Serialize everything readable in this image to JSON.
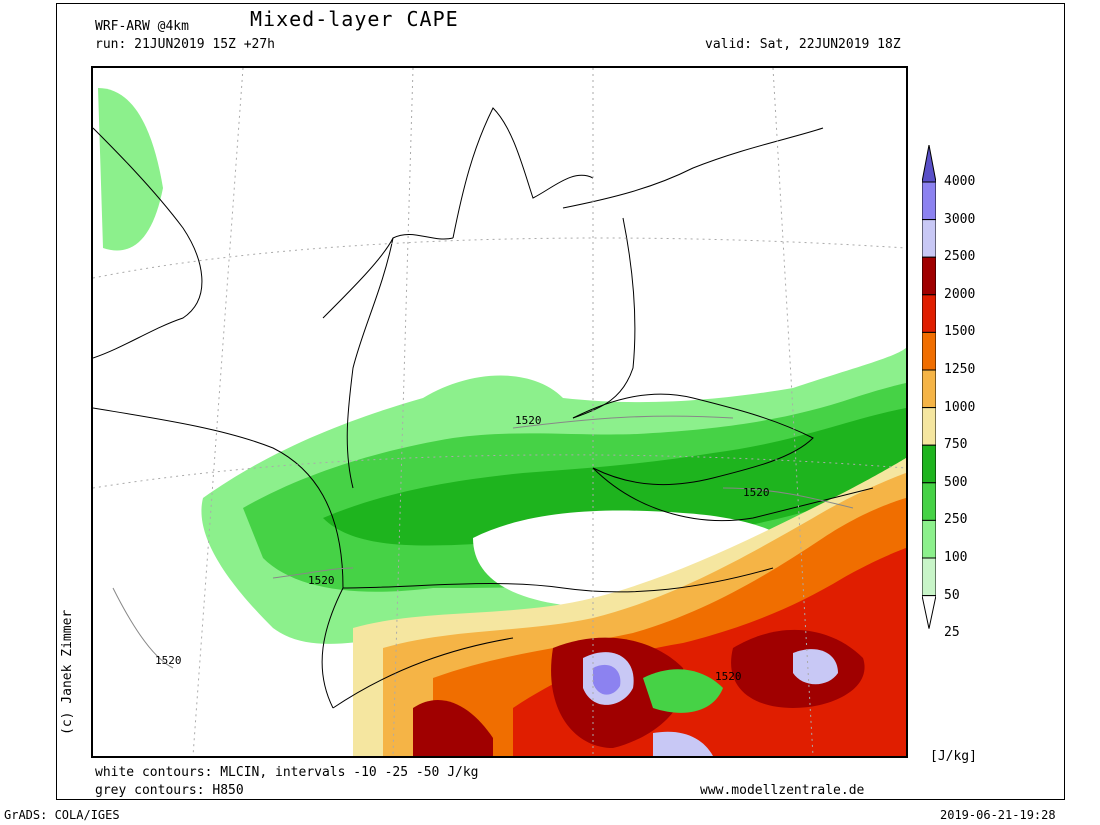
{
  "header": {
    "model": "WRF-ARW @4km",
    "title": "Mixed-layer CAPE",
    "run": "run: 21JUN2019 15Z +27h",
    "valid": "valid: Sat, 22JUN2019 18Z"
  },
  "footer": {
    "white_contours": "white contours: MLCIN, intervals -10 -25 -50 J/kg",
    "grey_contours": "grey contours: H850",
    "website": "www.modellzentrale.de",
    "grads": "GrADS: COLA/IGES",
    "timestamp": "2019-06-21-19:28"
  },
  "credit": "(c) Janek Zimmer",
  "legend": {
    "unit": "[J/kg]",
    "levels": [
      "4000",
      "3000",
      "2500",
      "2000",
      "1500",
      "1250",
      "1000",
      "750",
      "500",
      "250",
      "100",
      "50",
      "25"
    ],
    "colors": [
      "#5a50c8",
      "#8c82f0",
      "#c8c8f5",
      "#a00000",
      "#e01e00",
      "#f06e00",
      "#f5b446",
      "#f5e6a0",
      "#1eb41e",
      "#46d246",
      "#8cf08c",
      "#c8f5c8",
      "#ffffff"
    ]
  },
  "map": {
    "contour_labels": [
      "1520",
      "1520",
      "1520",
      "1520",
      "1520"
    ]
  }
}
